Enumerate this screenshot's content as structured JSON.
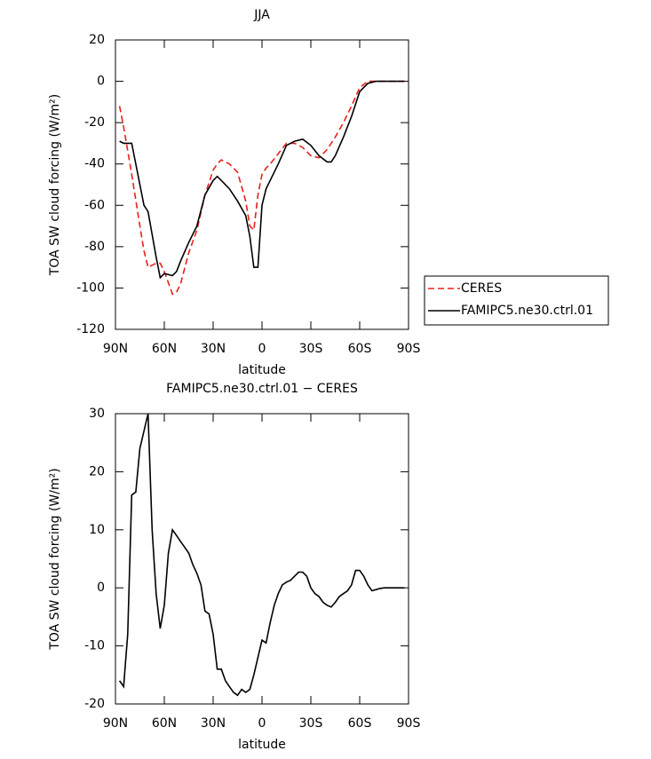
{
  "chart_data": [
    {
      "type": "line",
      "title": "JJA",
      "xlabel": "latitude",
      "ylabel": "TOA SW cloud forcing (W/m²)",
      "x": [
        87.5,
        85,
        80,
        75,
        72.5,
        70,
        65,
        62.5,
        60,
        55,
        52.5,
        50,
        45,
        40,
        35,
        30,
        27.5,
        25,
        20,
        15,
        10,
        7.5,
        5,
        2.5,
        0,
        -2.5,
        -5,
        -10,
        -15,
        -20,
        -25,
        -30,
        -35,
        -40,
        -42.5,
        -45,
        -50,
        -55,
        -60,
        -65,
        -70,
        -75,
        -80,
        -85,
        -87.5
      ],
      "series": [
        {
          "name": "CERES",
          "color": "#e8201c",
          "linestyle": "dashed",
          "values": [
            -12,
            -22,
            -45,
            -70,
            -82,
            -90,
            -88,
            -88,
            -92,
            -103,
            -102,
            -98,
            -83,
            -72,
            -55,
            -43,
            -40,
            -38,
            -40,
            -44,
            -58,
            -70,
            -72,
            -55,
            -45,
            -42,
            -40,
            -35,
            -30,
            -30,
            -32,
            -36,
            -37,
            -33,
            -30,
            -27,
            -20,
            -12,
            -3,
            0,
            0,
            0,
            0,
            0,
            0
          ]
        },
        {
          "name": "FAMIPC5.ne30.ctrl.01",
          "color": "#000000",
          "linestyle": "solid",
          "values": [
            -29,
            -30,
            -30,
            -50,
            -60,
            -63,
            -85,
            -95,
            -93,
            -94,
            -92,
            -87,
            -78,
            -70,
            -55,
            -48,
            -46,
            -48,
            -52,
            -58,
            -65,
            -75,
            -90,
            -90,
            -60,
            -52,
            -48,
            -40,
            -31,
            -29,
            -28,
            -31,
            -36,
            -39,
            -39,
            -36,
            -27,
            -17,
            -5,
            -1,
            0,
            0,
            0,
            0,
            0
          ]
        }
      ],
      "xlim": [
        90,
        -90
      ],
      "xticks": [
        {
          "value": 90,
          "label": "90N"
        },
        {
          "value": 60,
          "label": "60N"
        },
        {
          "value": 30,
          "label": "30N"
        },
        0,
        {
          "value": -30,
          "label": "30S"
        },
        {
          "value": -60,
          "label": "60S"
        },
        {
          "value": -90,
          "label": "90S"
        }
      ],
      "ylim": [
        -120,
        20
      ],
      "yticks": [
        20,
        0,
        -20,
        -40,
        -60,
        -80,
        -100,
        -120
      ],
      "legend": "right"
    },
    {
      "type": "line",
      "title": "FAMIPC5.ne30.ctrl.01 − CERES",
      "xlabel": "latitude",
      "ylabel": "TOA SW cloud forcing (W/m²)",
      "x": [
        87.5,
        85,
        82.5,
        80,
        77.5,
        75,
        72.5,
        70,
        67.5,
        65,
        62.5,
        60,
        57.5,
        55,
        52.5,
        50,
        47.5,
        45,
        42.5,
        40,
        37.5,
        35,
        32.5,
        30,
        27.5,
        25,
        22.5,
        20,
        17.5,
        15,
        12.5,
        10,
        7.5,
        5,
        2.5,
        0,
        -2.5,
        -5,
        -7.5,
        -10,
        -12.5,
        -15,
        -17.5,
        -20,
        -22.5,
        -25,
        -27.5,
        -30,
        -32.5,
        -35,
        -37.5,
        -40,
        -42.5,
        -45,
        -47.5,
        -50,
        -52.5,
        -55,
        -57.5,
        -60,
        -62.5,
        -65,
        -67.5,
        -70,
        -72.5,
        -75,
        -77.5,
        -80,
        -82.5,
        -85,
        -87.5
      ],
      "series": [
        {
          "name": "FAMIPC5.ne30.ctrl.01 − CERES",
          "color": "#000000",
          "linestyle": "solid",
          "values": [
            -16,
            -17,
            -8,
            16,
            16.5,
            24,
            27,
            30,
            10,
            -1,
            -7,
            -3,
            6,
            10,
            9,
            8,
            7,
            6,
            4,
            2.5,
            0.5,
            -4,
            -4.5,
            -8,
            -14,
            -14,
            -16,
            -17,
            -18,
            -18.5,
            -17.5,
            -18,
            -17.5,
            -15,
            -12,
            -9,
            -9.5,
            -6,
            -3,
            -1,
            0.5,
            1,
            1.3,
            2,
            2.7,
            2.7,
            2,
            0,
            -1,
            -1.5,
            -2.5,
            -3,
            -3.3,
            -2.5,
            -1.5,
            -1,
            -0.5,
            0.5,
            3,
            3,
            2,
            0.5,
            -0.5,
            -0.3,
            -0.1,
            0,
            0,
            0,
            0,
            0,
            0
          ]
        }
      ],
      "xlim": [
        90,
        -90
      ],
      "xticks": [
        {
          "value": 90,
          "label": "90N"
        },
        {
          "value": 60,
          "label": "60N"
        },
        {
          "value": 30,
          "label": "30N"
        },
        0,
        {
          "value": -30,
          "label": "30S"
        },
        {
          "value": -60,
          "label": "60S"
        },
        {
          "value": -90,
          "label": "90S"
        }
      ],
      "ylim": [
        -20,
        30
      ],
      "yticks": [
        30,
        20,
        10,
        0,
        -10,
        -20
      ]
    }
  ]
}
